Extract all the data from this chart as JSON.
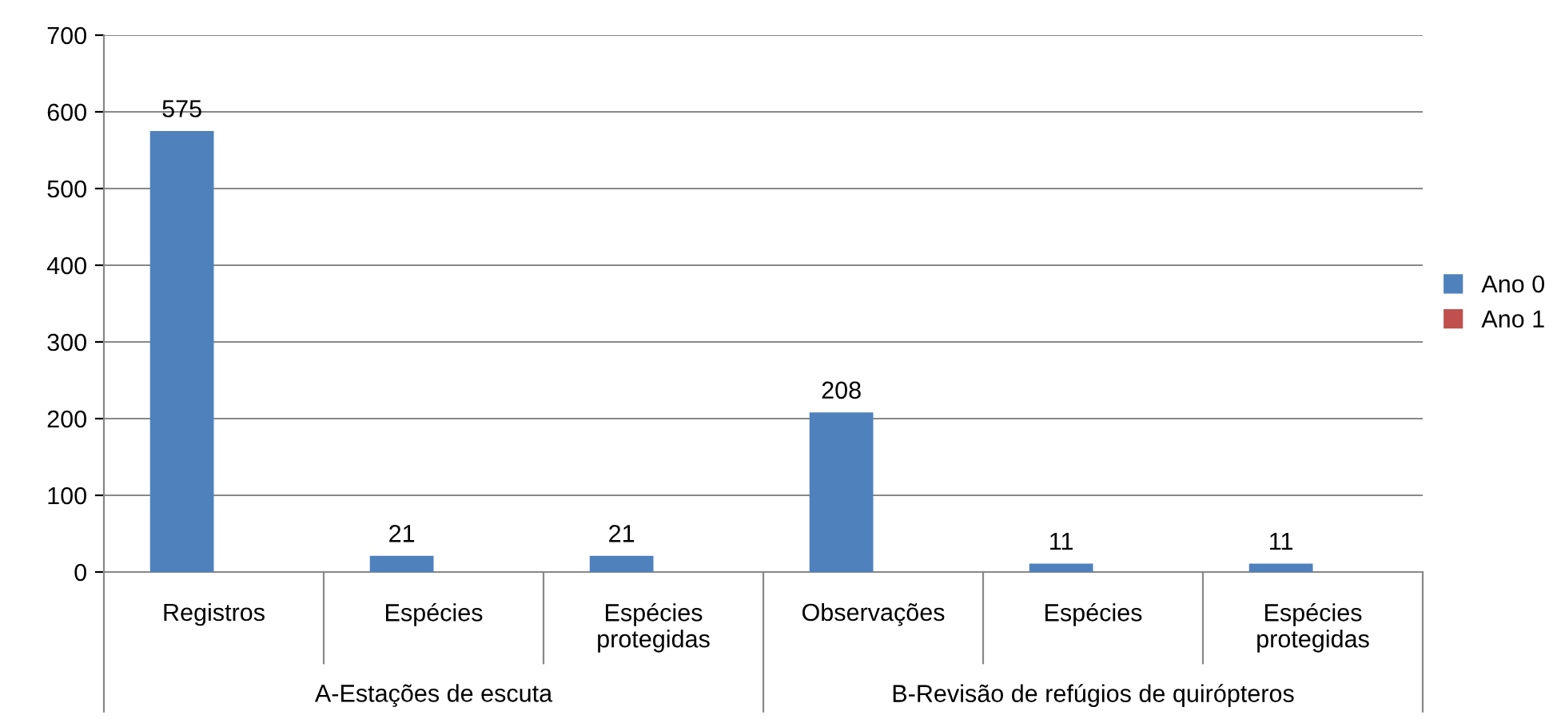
{
  "chart_data": {
    "type": "bar",
    "categories": [
      "Registros",
      "Espécies",
      "Espécies protegidas",
      "Observações",
      "Espécies",
      "Espécies protegidas"
    ],
    "series": [
      {
        "name": "Ano 0",
        "color": "#4f81bd",
        "values": [
          575,
          21,
          21,
          208,
          11,
          11
        ]
      },
      {
        "name": "Ano 1",
        "color": "#c0504d",
        "values": [
          null,
          null,
          null,
          null,
          null,
          null
        ]
      }
    ],
    "annotations": [
      "A-Estações de escuta",
      "B-Revisão de refúgios de quirópteros"
    ],
    "ylim": [
      0,
      700
    ],
    "yticks": [
      0,
      100,
      200,
      300,
      400,
      500,
      600,
      700
    ],
    "grid": "y",
    "legend": "right",
    "data_labels": true
  }
}
